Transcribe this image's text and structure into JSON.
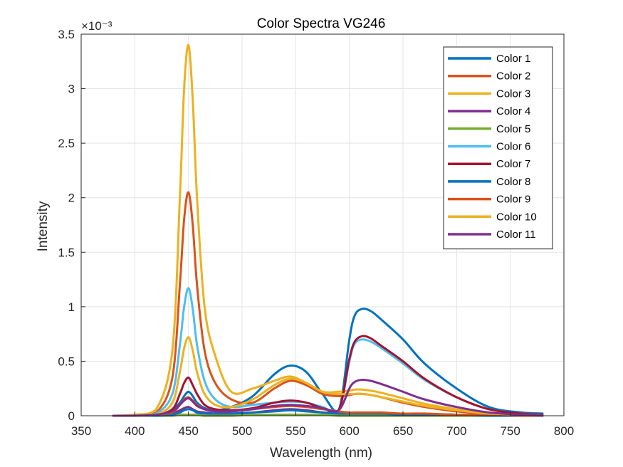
{
  "chart_data": {
    "type": "line",
    "title": "Color Spectra VG246",
    "xlabel": "Wavelength (nm)",
    "ylabel": "Intensity",
    "exponent_label": "×10⁻³",
    "xlim": [
      350,
      800
    ],
    "ylim": [
      0,
      3.5
    ],
    "y_scale_factor": 0.001,
    "x_ticks": [
      350,
      400,
      450,
      500,
      550,
      600,
      650,
      700,
      750,
      800
    ],
    "y_ticks": [
      0,
      0.5,
      1,
      1.5,
      2,
      2.5,
      3,
      3.5
    ],
    "x_tick_labels": [
      "350",
      "400",
      "450",
      "500",
      "550",
      "600",
      "650",
      "700",
      "750",
      "800"
    ],
    "y_tick_labels": [
      "0",
      "0.5",
      "1",
      "1.5",
      "2",
      "2.5",
      "3",
      "3.5"
    ],
    "grid": true,
    "legend_position": "top-right",
    "x": [
      380,
      400,
      420,
      435,
      442,
      446,
      450,
      454,
      458,
      465,
      475,
      490,
      510,
      530,
      545,
      560,
      575,
      590,
      600,
      605,
      612,
      620,
      630,
      650,
      670,
      700,
      730,
      760,
      780
    ],
    "series": [
      {
        "name": "Color 1",
        "color": "#0072BD",
        "values": [
          0.0,
          0.0,
          0.01,
          0.05,
          0.12,
          0.18,
          0.22,
          0.18,
          0.12,
          0.07,
          0.05,
          0.08,
          0.18,
          0.38,
          0.46,
          0.4,
          0.2,
          0.05,
          0.7,
          0.92,
          0.98,
          0.96,
          0.88,
          0.7,
          0.48,
          0.25,
          0.08,
          0.03,
          0.02
        ]
      },
      {
        "name": "Color 2",
        "color": "#D95319",
        "values": [
          0.0,
          0.0,
          0.03,
          0.35,
          1.2,
          1.8,
          2.05,
          1.75,
          1.2,
          0.6,
          0.3,
          0.15,
          0.12,
          0.25,
          0.32,
          0.28,
          0.2,
          0.18,
          0.19,
          0.2,
          0.2,
          0.19,
          0.17,
          0.12,
          0.08,
          0.04,
          0.02,
          0.01,
          0.01
        ]
      },
      {
        "name": "Color 3",
        "color": "#EDB120",
        "values": [
          0.0,
          0.01,
          0.06,
          0.6,
          2.0,
          3.0,
          3.4,
          2.9,
          2.0,
          1.0,
          0.55,
          0.22,
          0.25,
          0.32,
          0.36,
          0.3,
          0.22,
          0.22,
          0.23,
          0.24,
          0.24,
          0.23,
          0.21,
          0.16,
          0.11,
          0.06,
          0.03,
          0.01,
          0.01
        ]
      },
      {
        "name": "Color 4",
        "color": "#7E2F8E",
        "values": [
          0.0,
          0.0,
          0.0,
          0.02,
          0.05,
          0.07,
          0.08,
          0.06,
          0.04,
          0.03,
          0.02,
          0.02,
          0.03,
          0.05,
          0.06,
          0.05,
          0.03,
          0.02,
          0.02,
          0.02,
          0.02,
          0.02,
          0.02,
          0.01,
          0.01,
          0.01,
          0.0,
          0.0,
          0.0
        ]
      },
      {
        "name": "Color 5",
        "color": "#77AC30",
        "values": [
          0.0,
          0.0,
          0.0,
          0.0,
          0.01,
          0.01,
          0.01,
          0.01,
          0.01,
          0.0,
          0.0,
          0.0,
          0.01,
          0.01,
          0.01,
          0.01,
          0.01,
          0.0,
          0.0,
          0.0,
          0.0,
          0.0,
          0.0,
          0.0,
          0.0,
          0.0,
          0.0,
          0.0,
          0.0
        ]
      },
      {
        "name": "Color 6",
        "color": "#4DBEEE",
        "values": [
          0.0,
          0.0,
          0.02,
          0.2,
          0.65,
          1.0,
          1.17,
          0.98,
          0.65,
          0.32,
          0.15,
          0.08,
          0.1,
          0.12,
          0.13,
          0.12,
          0.08,
          0.05,
          0.5,
          0.66,
          0.7,
          0.68,
          0.62,
          0.48,
          0.33,
          0.17,
          0.06,
          0.02,
          0.01
        ]
      },
      {
        "name": "Color 7",
        "color": "#A2142F",
        "values": [
          0.0,
          0.0,
          0.01,
          0.06,
          0.2,
          0.3,
          0.35,
          0.28,
          0.2,
          0.1,
          0.06,
          0.05,
          0.07,
          0.12,
          0.14,
          0.12,
          0.07,
          0.05,
          0.52,
          0.68,
          0.73,
          0.71,
          0.64,
          0.5,
          0.34,
          0.17,
          0.06,
          0.02,
          0.01
        ]
      },
      {
        "name": "Color 8",
        "color": "#0072BD",
        "values": [
          0.0,
          0.0,
          0.0,
          0.01,
          0.03,
          0.05,
          0.06,
          0.05,
          0.03,
          0.02,
          0.02,
          0.02,
          0.03,
          0.04,
          0.05,
          0.04,
          0.03,
          0.02,
          0.02,
          0.02,
          0.02,
          0.02,
          0.02,
          0.01,
          0.01,
          0.01,
          0.0,
          0.0,
          0.0
        ]
      },
      {
        "name": "Color 9",
        "color": "#D95319",
        "values": [
          0.0,
          0.0,
          0.01,
          0.03,
          0.1,
          0.15,
          0.17,
          0.14,
          0.1,
          0.06,
          0.04,
          0.04,
          0.06,
          0.08,
          0.09,
          0.08,
          0.06,
          0.04,
          0.03,
          0.03,
          0.03,
          0.03,
          0.03,
          0.02,
          0.02,
          0.01,
          0.01,
          0.0,
          0.0
        ]
      },
      {
        "name": "Color 10",
        "color": "#EDB120",
        "values": [
          0.0,
          0.0,
          0.01,
          0.12,
          0.4,
          0.62,
          0.72,
          0.6,
          0.4,
          0.2,
          0.1,
          0.08,
          0.15,
          0.28,
          0.34,
          0.3,
          0.22,
          0.2,
          0.2,
          0.2,
          0.2,
          0.19,
          0.17,
          0.13,
          0.09,
          0.05,
          0.02,
          0.01,
          0.0
        ]
      },
      {
        "name": "Color 11",
        "color": "#7E2F8E",
        "values": [
          0.0,
          0.0,
          0.01,
          0.04,
          0.1,
          0.14,
          0.16,
          0.13,
          0.09,
          0.06,
          0.04,
          0.04,
          0.06,
          0.09,
          0.1,
          0.09,
          0.07,
          0.05,
          0.25,
          0.31,
          0.33,
          0.32,
          0.29,
          0.22,
          0.15,
          0.08,
          0.03,
          0.01,
          0.0
        ]
      }
    ]
  }
}
